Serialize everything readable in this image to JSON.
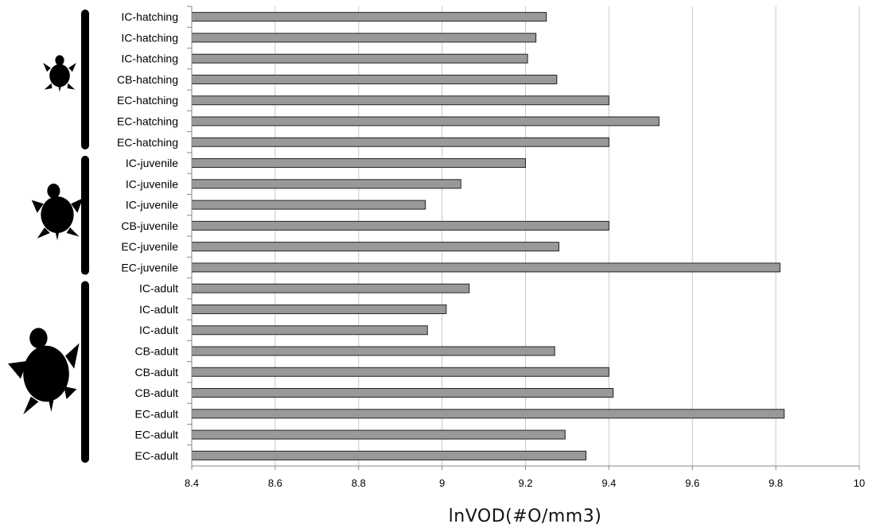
{
  "chart_data": {
    "type": "bar",
    "orientation": "horizontal",
    "title": "",
    "xlabel": "lnVOD(#O/mm3)",
    "ylabel": "",
    "xlim": [
      8.4,
      10
    ],
    "xticks": [
      "8.4",
      "8.6",
      "8.8",
      "9",
      "9.2",
      "9.4",
      "9.6",
      "9.8",
      "10"
    ],
    "grid": "vertical",
    "bar_color": "#999999",
    "categories": [
      "IC-hatching",
      "IC-hatching",
      "IC-hatching",
      "CB-hatching",
      "EC-hatching",
      "EC-hatching",
      "EC-hatching",
      "IC-juvenile",
      "IC-juvenile",
      "IC-juvenile",
      "CB-juvenile",
      "EC-juvenile",
      "EC-juvenile",
      "IC-adult",
      "IC-adult",
      "IC-adult",
      "CB-adult",
      "CB-adult",
      "CB-adult",
      "EC-adult",
      "EC-adult",
      "EC-adult"
    ],
    "values": [
      9.25,
      9.225,
      9.205,
      9.275,
      9.4,
      9.52,
      9.4,
      9.2,
      9.045,
      8.96,
      9.4,
      9.28,
      9.81,
      9.065,
      9.01,
      8.965,
      9.27,
      9.4,
      9.41,
      9.82,
      9.295,
      9.345
    ],
    "groups": [
      {
        "name": "hatching",
        "icon": "turtle-small-icon",
        "first": 0,
        "last": 6
      },
      {
        "name": "juvenile",
        "icon": "turtle-medium-icon",
        "first": 7,
        "last": 12
      },
      {
        "name": "adult",
        "icon": "turtle-large-icon",
        "first": 13,
        "last": 21
      }
    ]
  }
}
